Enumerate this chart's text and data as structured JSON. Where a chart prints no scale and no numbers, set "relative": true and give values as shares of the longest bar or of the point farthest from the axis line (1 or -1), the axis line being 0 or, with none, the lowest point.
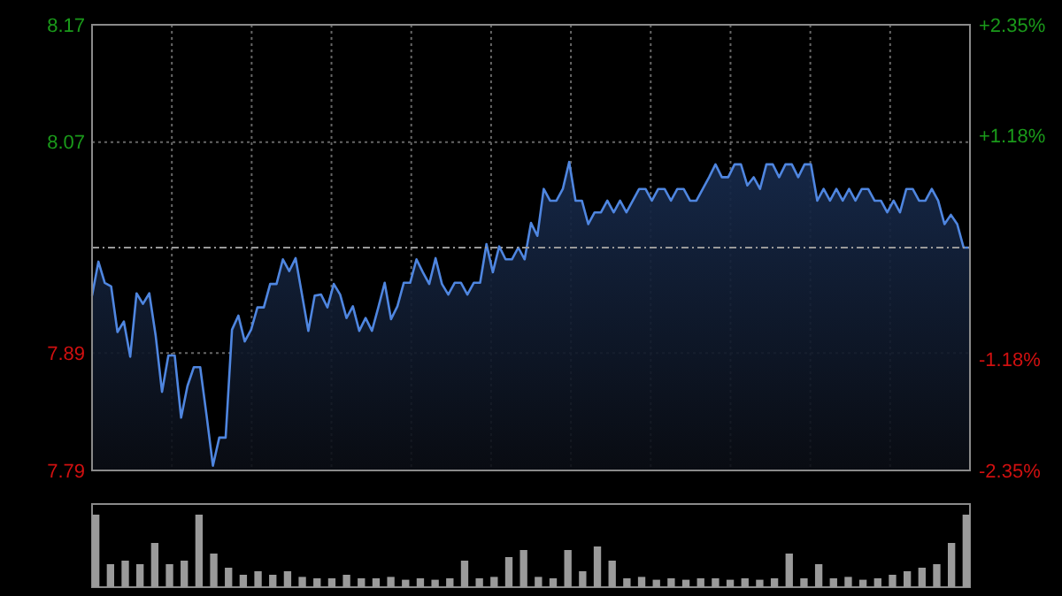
{
  "chart_data": [
    {
      "type": "area",
      "categories": [
        null,
        null,
        null,
        null,
        null,
        null,
        null,
        null,
        null,
        null,
        null,
        null,
        null,
        null,
        null,
        null,
        null,
        null,
        null,
        null,
        null,
        null,
        null,
        null,
        null,
        null,
        null,
        null,
        null,
        null,
        null,
        null,
        null,
        null,
        null,
        null,
        null,
        null,
        null,
        null,
        null,
        null,
        null,
        null,
        null,
        null,
        null,
        null,
        null,
        null,
        null,
        null,
        null,
        null,
        null,
        null,
        null,
        null,
        null,
        null,
        null,
        null,
        null,
        null,
        null,
        null,
        null,
        null,
        null,
        null,
        null,
        null,
        null,
        null,
        null,
        null,
        null,
        null,
        null,
        null,
        null,
        null,
        null,
        null,
        null,
        null,
        null,
        null,
        null,
        null,
        null,
        null,
        null,
        null,
        null,
        null,
        null,
        null,
        null,
        null,
        null,
        null,
        null,
        null,
        null,
        null,
        null,
        null,
        null,
        null,
        null,
        null,
        null,
        null,
        null,
        null,
        null,
        null,
        null,
        null,
        null,
        null,
        null,
        null,
        null,
        null,
        null,
        null,
        null,
        null,
        null,
        null,
        null,
        null,
        null,
        null,
        null,
        null,
        null
      ],
      "series": [
        {
          "color": "#4f86e0",
          "values": [
            7.939,
            7.968,
            7.95,
            7.947,
            7.908,
            7.917,
            7.887,
            7.941,
            7.932,
            7.941,
            7.905,
            7.857,
            7.888,
            7.888,
            7.835,
            7.862,
            7.878,
            7.878,
            7.837,
            7.794,
            7.818,
            7.818,
            7.91,
            7.922,
            7.9,
            7.91,
            7.929,
            7.929,
            7.949,
            7.949,
            7.97,
            7.96,
            7.971,
            7.94,
            7.909,
            7.939,
            7.94,
            7.929,
            7.949,
            7.94,
            7.92,
            7.93,
            7.909,
            7.92,
            7.909,
            7.929,
            7.95,
            7.919,
            7.93,
            7.95,
            7.95,
            7.97,
            7.959,
            7.949,
            7.971,
            7.949,
            7.94,
            7.95,
            7.95,
            7.94,
            7.95,
            7.95,
            7.983,
            7.959,
            7.981,
            7.97,
            7.97,
            7.98,
            7.97,
            8.001,
            7.99,
            8.03,
            8.02,
            8.02,
            8.03,
            8.053,
            8.02,
            8.02,
            8.0,
            8.01,
            8.01,
            8.02,
            8.01,
            8.02,
            8.01,
            8.02,
            8.03,
            8.03,
            8.02,
            8.03,
            8.03,
            8.02,
            8.03,
            8.03,
            8.02,
            8.02,
            8.03,
            8.04,
            8.051,
            8.04,
            8.04,
            8.051,
            8.051,
            8.033,
            8.04,
            8.03,
            8.051,
            8.051,
            8.04,
            8.051,
            8.051,
            8.04,
            8.051,
            8.051,
            8.02,
            8.03,
            8.02,
            8.03,
            8.02,
            8.03,
            8.02,
            8.03,
            8.03,
            8.02,
            8.02,
            8.01,
            8.02,
            8.01,
            8.03,
            8.03,
            8.02,
            8.02,
            8.03,
            8.02,
            8.0,
            8.008,
            8.0,
            7.98,
            7.98
          ]
        }
      ],
      "ylim": [
        7.79,
        8.17
      ],
      "yticks": [
        8.17,
        8.07,
        7.89,
        7.79
      ],
      "y2lim": [
        -2.35,
        2.35
      ],
      "y2ticks": [
        {
          "value": 2.35,
          "label": "+2.35%"
        },
        {
          "value": 1.18,
          "label": "+1.18%"
        },
        {
          "value": -1.18,
          "label": "-1.18%"
        },
        {
          "value": -2.35,
          "label": "-2.35%"
        }
      ],
      "ref_lines": [
        {
          "axis": "y",
          "value": 7.98,
          "line_style": "dashed"
        }
      ],
      "grid": true,
      "tick_labels": "y"
    },
    {
      "type": "bar",
      "relative": true,
      "categories": [
        null,
        null,
        null,
        null,
        null,
        null,
        null,
        null,
        null,
        null,
        null,
        null,
        null,
        null,
        null,
        null,
        null,
        null,
        null,
        null,
        null,
        null,
        null,
        null,
        null,
        null,
        null,
        null,
        null,
        null,
        null,
        null,
        null,
        null,
        null,
        null,
        null,
        null,
        null,
        null,
        null,
        null,
        null,
        null,
        null,
        null,
        null,
        null,
        null,
        null,
        null,
        null,
        null,
        null,
        null,
        null,
        null,
        null,
        null,
        null
      ],
      "values": [
        1.0,
        0.3,
        0.35,
        0.3,
        0.6,
        0.3,
        0.35,
        1.0,
        0.45,
        0.25,
        0.15,
        0.2,
        0.15,
        0.2,
        0.12,
        0.1,
        0.1,
        0.15,
        0.1,
        0.1,
        0.12,
        0.08,
        0.1,
        0.08,
        0.1,
        0.35,
        0.1,
        0.12,
        0.4,
        0.5,
        0.12,
        0.1,
        0.5,
        0.2,
        0.55,
        0.35,
        0.1,
        0.12,
        0.08,
        0.1,
        0.08,
        0.1,
        0.1,
        0.08,
        0.1,
        0.08,
        0.1,
        0.45,
        0.1,
        0.3,
        0.1,
        0.12,
        0.08,
        0.1,
        0.15,
        0.2,
        0.25,
        0.3,
        0.6,
        1.0
      ],
      "color": "#9a9a9a",
      "tick_labels": false
    }
  ]
}
